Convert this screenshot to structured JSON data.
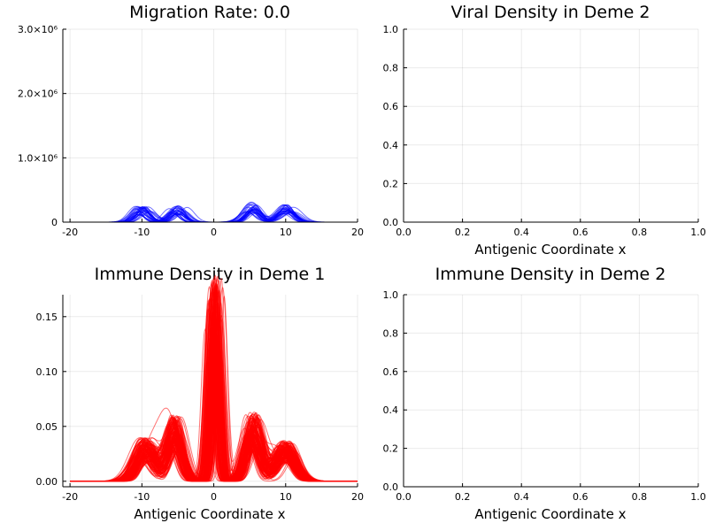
{
  "chart_data": [
    {
      "panel": "top-left",
      "type": "line",
      "title": "Migration Rate: 0.0",
      "xlabel": "",
      "ylabel": "",
      "xlim": [
        -21,
        20
      ],
      "ylim": [
        0,
        3000000
      ],
      "xticks": [
        -20,
        -10,
        0,
        10,
        20
      ],
      "xtick_labels": [
        "-20",
        "-10",
        "0",
        "10",
        "20"
      ],
      "yticks": [
        0,
        1000000,
        2000000,
        3000000
      ],
      "ytick_labels": [
        "0",
        "1.0×10⁶",
        "2.0×10⁶",
        "3.0×10⁶"
      ],
      "grid": true,
      "line_color": "#0000ff",
      "series_count": 30,
      "bumps": [
        {
          "center": -10,
          "peak": 200000,
          "width": 1.0
        },
        {
          "center": -5,
          "peak": 210000,
          "width": 1.0
        },
        {
          "center": 5.5,
          "peak": 250000,
          "width": 1.0
        },
        {
          "center": 10,
          "peak": 220000,
          "width": 1.1
        }
      ]
    },
    {
      "panel": "top-right",
      "type": "line",
      "title": "Viral Density in Deme 2",
      "xlabel": "Antigenic Coordinate x",
      "ylabel": "",
      "xlim": [
        0,
        1
      ],
      "ylim": [
        0,
        1
      ],
      "xticks": [
        0,
        0.2,
        0.4,
        0.6,
        0.8,
        1.0
      ],
      "xtick_labels": [
        "0.0",
        "0.2",
        "0.4",
        "0.6",
        "0.8",
        "1.0"
      ],
      "yticks": [
        0,
        0.2,
        0.4,
        0.6,
        0.8,
        1.0
      ],
      "ytick_labels": [
        "0.0",
        "0.2",
        "0.4",
        "0.6",
        "0.8",
        "1.0"
      ],
      "grid": true
    },
    {
      "panel": "bottom-left",
      "type": "line",
      "title": "Immune Density in Deme 1",
      "xlabel": "Antigenic Coordinate x",
      "ylabel": "",
      "xlim": [
        -21,
        20
      ],
      "ylim": [
        -0.005,
        0.17
      ],
      "xticks": [
        -20,
        -10,
        0,
        10,
        20
      ],
      "xtick_labels": [
        "-20",
        "-10",
        "0",
        "10",
        "20"
      ],
      "yticks": [
        0,
        0.05,
        0.1,
        0.15
      ],
      "ytick_labels": [
        "0.00",
        "0.05",
        "0.10",
        "0.15"
      ],
      "grid": true,
      "line_color": "#ff0000",
      "series_count": 150,
      "bumps": [
        {
          "center": -9.5,
          "peak": 0.032,
          "width": 1.3
        },
        {
          "center": -5.5,
          "peak": 0.048,
          "width": 1.0
        },
        {
          "center": 0,
          "peak": 0.15,
          "width": 0.55
        },
        {
          "center": 5.5,
          "peak": 0.05,
          "width": 1.0
        },
        {
          "center": 10,
          "peak": 0.03,
          "width": 1.3
        }
      ]
    },
    {
      "panel": "bottom-right",
      "type": "line",
      "title": "Immune Density in Deme 2",
      "xlabel": "Antigenic Coordinate x",
      "ylabel": "",
      "xlim": [
        0,
        1
      ],
      "ylim": [
        0,
        1
      ],
      "xticks": [
        0,
        0.2,
        0.4,
        0.6,
        0.8,
        1.0
      ],
      "xtick_labels": [
        "0.0",
        "0.2",
        "0.4",
        "0.6",
        "0.8",
        "1.0"
      ],
      "yticks": [
        0,
        0.2,
        0.4,
        0.6,
        0.8,
        1.0
      ],
      "ytick_labels": [
        "0.0",
        "0.2",
        "0.4",
        "0.6",
        "0.8",
        "1.0"
      ],
      "grid": true
    }
  ]
}
